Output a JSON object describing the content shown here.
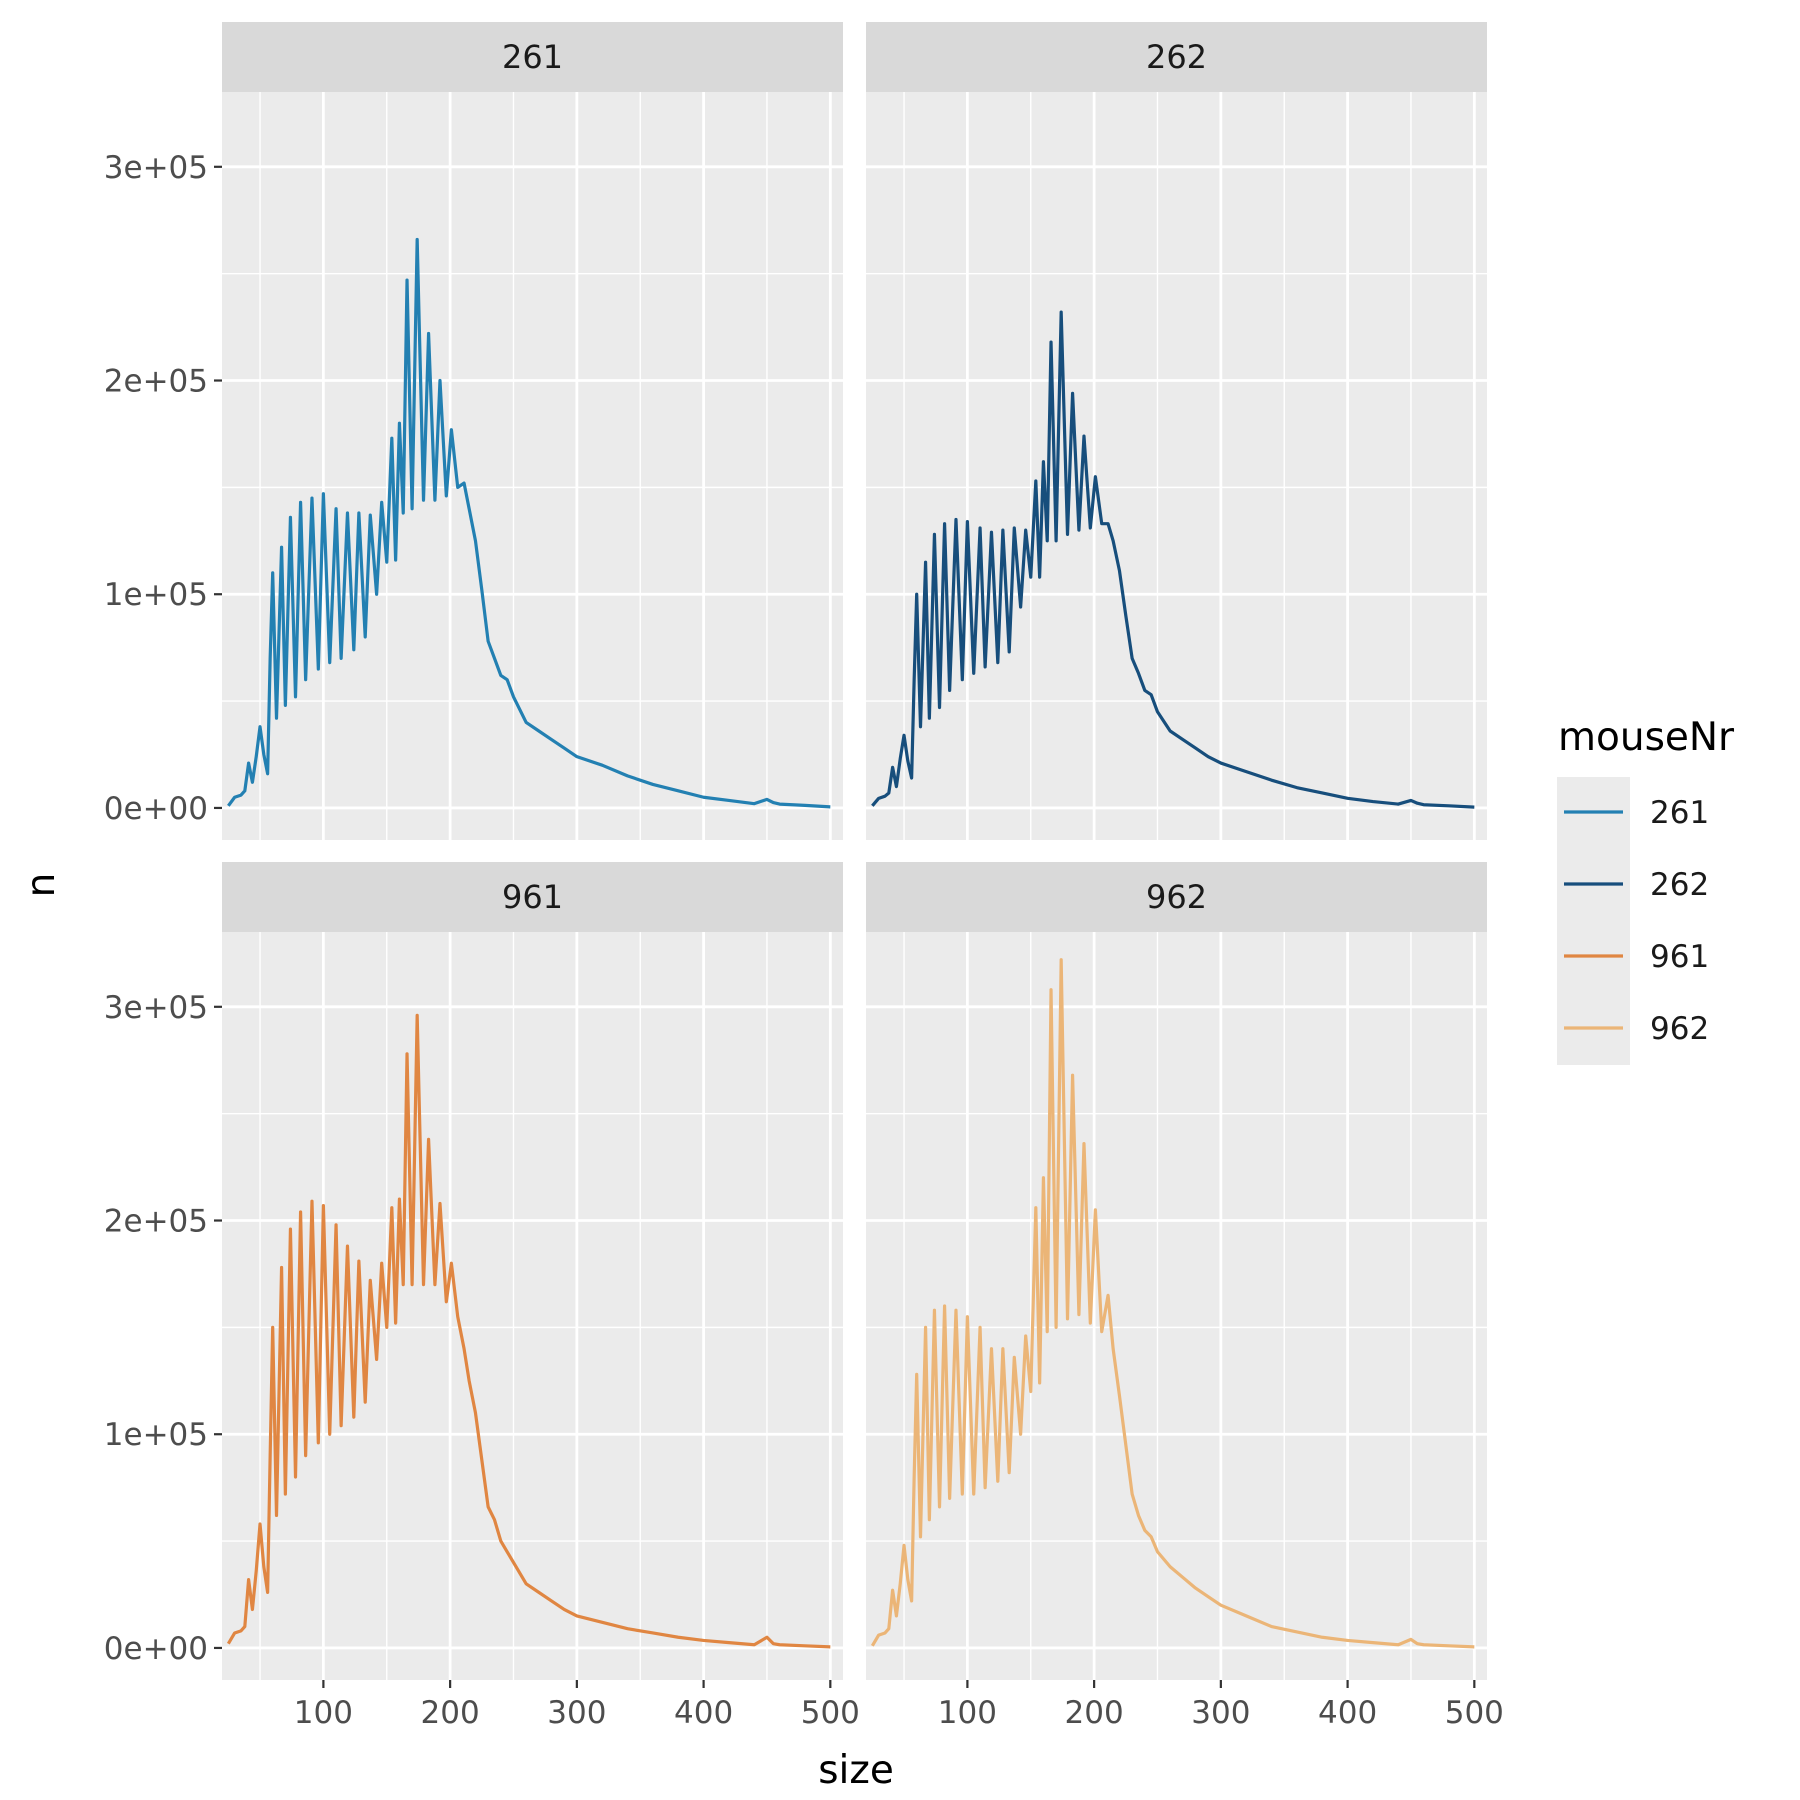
{
  "chart_data": {
    "type": "line",
    "xlabel": "size",
    "ylabel": "n",
    "xlim": [
      20,
      510
    ],
    "ylim": [
      -15000,
      335000
    ],
    "x_ticks": [
      {
        "value": 100,
        "label": "100"
      },
      {
        "value": 200,
        "label": "200"
      },
      {
        "value": 300,
        "label": "300"
      },
      {
        "value": 400,
        "label": "400"
      },
      {
        "value": 500,
        "label": "500"
      }
    ],
    "y_ticks": [
      {
        "value": 0,
        "label": "0e+00"
      },
      {
        "value": 100000,
        "label": "1e+05"
      },
      {
        "value": 200000,
        "label": "2e+05"
      },
      {
        "value": 300000,
        "label": "3e+05"
      }
    ],
    "grid": true,
    "legend": {
      "title": "mouseNr",
      "position": "right"
    },
    "series": [
      {
        "name": "261",
        "color": "#2380b2",
        "points": [
          [
            25,
            1000
          ],
          [
            30,
            5000
          ],
          [
            35,
            6000
          ],
          [
            38,
            8000
          ],
          [
            41,
            21000
          ],
          [
            44,
            12000
          ],
          [
            47,
            24000
          ],
          [
            50,
            38000
          ],
          [
            53,
            25000
          ],
          [
            56,
            16000
          ],
          [
            58,
            70000
          ],
          [
            60,
            110000
          ],
          [
            63,
            42000
          ],
          [
            67,
            122000
          ],
          [
            70,
            48000
          ],
          [
            74,
            136000
          ],
          [
            78,
            52000
          ],
          [
            82,
            143000
          ],
          [
            86,
            60000
          ],
          [
            91,
            145000
          ],
          [
            96,
            65000
          ],
          [
            100,
            147000
          ],
          [
            105,
            68000
          ],
          [
            110,
            140000
          ],
          [
            114,
            70000
          ],
          [
            119,
            138000
          ],
          [
            124,
            74000
          ],
          [
            128,
            138000
          ],
          [
            133,
            80000
          ],
          [
            137,
            137000
          ],
          [
            142,
            100000
          ],
          [
            146,
            143000
          ],
          [
            150,
            115000
          ],
          [
            154,
            173000
          ],
          [
            157,
            116000
          ],
          [
            160,
            180000
          ],
          [
            163,
            138000
          ],
          [
            166,
            247000
          ],
          [
            170,
            140000
          ],
          [
            174,
            266000
          ],
          [
            179,
            144000
          ],
          [
            183,
            222000
          ],
          [
            188,
            144000
          ],
          [
            192,
            200000
          ],
          [
            197,
            146000
          ],
          [
            201,
            177000
          ],
          [
            206,
            150000
          ],
          [
            211,
            152000
          ],
          [
            215,
            140000
          ],
          [
            220,
            125000
          ],
          [
            225,
            102000
          ],
          [
            230,
            78000
          ],
          [
            235,
            70000
          ],
          [
            240,
            62000
          ],
          [
            245,
            60000
          ],
          [
            250,
            52000
          ],
          [
            260,
            40000
          ],
          [
            270,
            36000
          ],
          [
            280,
            32000
          ],
          [
            290,
            28000
          ],
          [
            300,
            24000
          ],
          [
            320,
            20000
          ],
          [
            340,
            15000
          ],
          [
            360,
            11000
          ],
          [
            380,
            8000
          ],
          [
            400,
            5000
          ],
          [
            420,
            3500
          ],
          [
            440,
            2000
          ],
          [
            450,
            4000
          ],
          [
            455,
            2500
          ],
          [
            460,
            1800
          ],
          [
            480,
            1200
          ],
          [
            500,
            500
          ]
        ]
      },
      {
        "name": "262",
        "color": "#174e7c",
        "points": [
          [
            25,
            1000
          ],
          [
            30,
            4500
          ],
          [
            35,
            5500
          ],
          [
            38,
            7000
          ],
          [
            41,
            19000
          ],
          [
            44,
            10000
          ],
          [
            47,
            23000
          ],
          [
            50,
            34000
          ],
          [
            53,
            22000
          ],
          [
            56,
            14000
          ],
          [
            58,
            60000
          ],
          [
            60,
            100000
          ],
          [
            63,
            38000
          ],
          [
            67,
            115000
          ],
          [
            70,
            42000
          ],
          [
            74,
            128000
          ],
          [
            78,
            47000
          ],
          [
            82,
            133000
          ],
          [
            86,
            55000
          ],
          [
            91,
            135000
          ],
          [
            96,
            60000
          ],
          [
            100,
            134000
          ],
          [
            105,
            63000
          ],
          [
            110,
            131000
          ],
          [
            114,
            66000
          ],
          [
            119,
            129000
          ],
          [
            124,
            68000
          ],
          [
            128,
            130000
          ],
          [
            133,
            73000
          ],
          [
            137,
            131000
          ],
          [
            142,
            94000
          ],
          [
            146,
            130000
          ],
          [
            150,
            108000
          ],
          [
            154,
            153000
          ],
          [
            157,
            108000
          ],
          [
            160,
            162000
          ],
          [
            163,
            125000
          ],
          [
            166,
            218000
          ],
          [
            170,
            125000
          ],
          [
            174,
            232000
          ],
          [
            179,
            128000
          ],
          [
            183,
            194000
          ],
          [
            188,
            130000
          ],
          [
            192,
            174000
          ],
          [
            197,
            131000
          ],
          [
            201,
            155000
          ],
          [
            206,
            133000
          ],
          [
            211,
            133000
          ],
          [
            215,
            125000
          ],
          [
            220,
            111000
          ],
          [
            225,
            90000
          ],
          [
            230,
            70000
          ],
          [
            235,
            63000
          ],
          [
            240,
            55000
          ],
          [
            245,
            53000
          ],
          [
            250,
            45000
          ],
          [
            260,
            36000
          ],
          [
            270,
            32000
          ],
          [
            280,
            28000
          ],
          [
            290,
            24000
          ],
          [
            300,
            21000
          ],
          [
            320,
            17000
          ],
          [
            340,
            13000
          ],
          [
            360,
            9500
          ],
          [
            380,
            7000
          ],
          [
            400,
            4500
          ],
          [
            420,
            3000
          ],
          [
            440,
            1800
          ],
          [
            450,
            3500
          ],
          [
            455,
            2200
          ],
          [
            460,
            1500
          ],
          [
            480,
            1000
          ],
          [
            500,
            400
          ]
        ]
      },
      {
        "name": "961",
        "color": "#e08642",
        "points": [
          [
            25,
            2000
          ],
          [
            30,
            7000
          ],
          [
            35,
            8000
          ],
          [
            38,
            10000
          ],
          [
            41,
            32000
          ],
          [
            44,
            18000
          ],
          [
            47,
            36000
          ],
          [
            50,
            58000
          ],
          [
            53,
            38000
          ],
          [
            56,
            26000
          ],
          [
            58,
            90000
          ],
          [
            60,
            150000
          ],
          [
            63,
            62000
          ],
          [
            67,
            178000
          ],
          [
            70,
            72000
          ],
          [
            74,
            196000
          ],
          [
            78,
            80000
          ],
          [
            82,
            204000
          ],
          [
            86,
            90000
          ],
          [
            91,
            209000
          ],
          [
            96,
            96000
          ],
          [
            100,
            207000
          ],
          [
            105,
            100000
          ],
          [
            110,
            198000
          ],
          [
            114,
            104000
          ],
          [
            119,
            188000
          ],
          [
            124,
            108000
          ],
          [
            128,
            181000
          ],
          [
            133,
            115000
          ],
          [
            137,
            172000
          ],
          [
            142,
            135000
          ],
          [
            146,
            180000
          ],
          [
            150,
            150000
          ],
          [
            154,
            206000
          ],
          [
            157,
            152000
          ],
          [
            160,
            210000
          ],
          [
            163,
            170000
          ],
          [
            166,
            278000
          ],
          [
            170,
            170000
          ],
          [
            174,
            296000
          ],
          [
            179,
            170000
          ],
          [
            183,
            238000
          ],
          [
            188,
            170000
          ],
          [
            192,
            208000
          ],
          [
            197,
            162000
          ],
          [
            201,
            180000
          ],
          [
            206,
            155000
          ],
          [
            211,
            140000
          ],
          [
            215,
            125000
          ],
          [
            220,
            110000
          ],
          [
            225,
            88000
          ],
          [
            230,
            66000
          ],
          [
            235,
            60000
          ],
          [
            240,
            50000
          ],
          [
            245,
            45000
          ],
          [
            250,
            40000
          ],
          [
            260,
            30000
          ],
          [
            270,
            26000
          ],
          [
            280,
            22000
          ],
          [
            290,
            18000
          ],
          [
            300,
            15000
          ],
          [
            320,
            12000
          ],
          [
            340,
            9000
          ],
          [
            360,
            7000
          ],
          [
            380,
            5000
          ],
          [
            400,
            3500
          ],
          [
            420,
            2500
          ],
          [
            440,
            1500
          ],
          [
            450,
            5000
          ],
          [
            455,
            2000
          ],
          [
            460,
            1500
          ],
          [
            480,
            1000
          ],
          [
            500,
            500
          ]
        ]
      },
      {
        "name": "962",
        "color": "#ebb577",
        "points": [
          [
            25,
            1000
          ],
          [
            30,
            6000
          ],
          [
            35,
            7000
          ],
          [
            38,
            9000
          ],
          [
            41,
            27000
          ],
          [
            44,
            15000
          ],
          [
            47,
            30000
          ],
          [
            50,
            48000
          ],
          [
            53,
            32000
          ],
          [
            56,
            22000
          ],
          [
            58,
            80000
          ],
          [
            60,
            128000
          ],
          [
            63,
            52000
          ],
          [
            67,
            150000
          ],
          [
            70,
            60000
          ],
          [
            74,
            158000
          ],
          [
            78,
            66000
          ],
          [
            82,
            160000
          ],
          [
            86,
            70000
          ],
          [
            91,
            158000
          ],
          [
            96,
            72000
          ],
          [
            100,
            155000
          ],
          [
            105,
            72000
          ],
          [
            110,
            150000
          ],
          [
            114,
            75000
          ],
          [
            119,
            140000
          ],
          [
            124,
            78000
          ],
          [
            128,
            140000
          ],
          [
            133,
            82000
          ],
          [
            137,
            136000
          ],
          [
            142,
            100000
          ],
          [
            146,
            146000
          ],
          [
            150,
            120000
          ],
          [
            154,
            206000
          ],
          [
            157,
            124000
          ],
          [
            160,
            220000
          ],
          [
            163,
            148000
          ],
          [
            166,
            308000
          ],
          [
            170,
            150000
          ],
          [
            174,
            322000
          ],
          [
            179,
            154000
          ],
          [
            183,
            268000
          ],
          [
            188,
            156000
          ],
          [
            192,
            236000
          ],
          [
            197,
            152000
          ],
          [
            201,
            205000
          ],
          [
            206,
            148000
          ],
          [
            211,
            165000
          ],
          [
            215,
            140000
          ],
          [
            220,
            118000
          ],
          [
            225,
            95000
          ],
          [
            230,
            72000
          ],
          [
            235,
            62000
          ],
          [
            240,
            55000
          ],
          [
            245,
            52000
          ],
          [
            250,
            45000
          ],
          [
            260,
            38000
          ],
          [
            270,
            33000
          ],
          [
            280,
            28000
          ],
          [
            290,
            24000
          ],
          [
            300,
            20000
          ],
          [
            320,
            15000
          ],
          [
            340,
            10000
          ],
          [
            360,
            7500
          ],
          [
            380,
            5000
          ],
          [
            400,
            3500
          ],
          [
            420,
            2500
          ],
          [
            440,
            1500
          ],
          [
            450,
            4000
          ],
          [
            455,
            2000
          ],
          [
            460,
            1500
          ],
          [
            480,
            1000
          ],
          [
            500,
            500
          ]
        ]
      }
    ]
  }
}
